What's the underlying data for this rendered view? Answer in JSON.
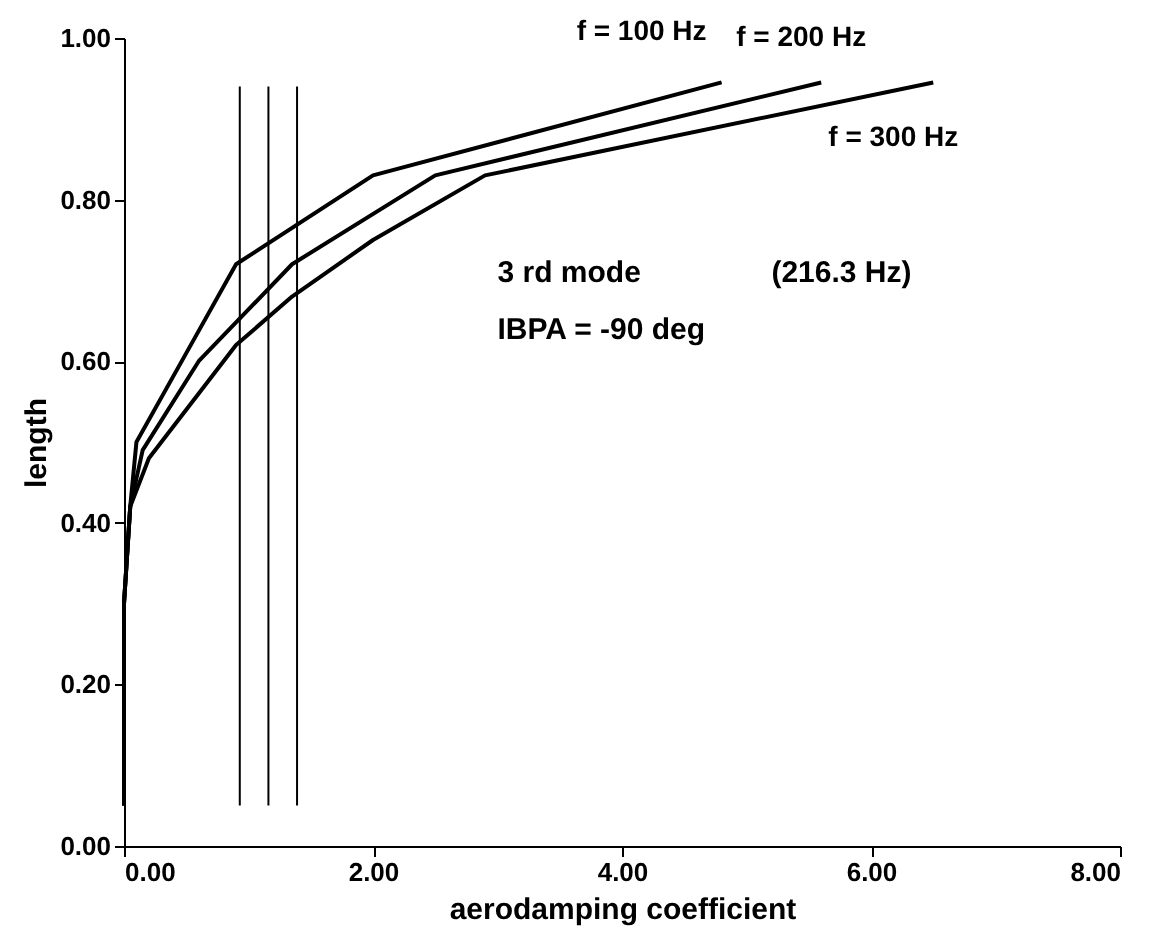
{
  "chart_data": {
    "type": "line",
    "xlabel": "aerodamping coefficient",
    "ylabel": "length",
    "xlim": [
      0,
      8
    ],
    "ylim": [
      0,
      1
    ],
    "xticks": [
      {
        "value": 0,
        "label": "0.00"
      },
      {
        "value": 2,
        "label": "2.00"
      },
      {
        "value": 4,
        "label": "4.00"
      },
      {
        "value": 6,
        "label": "6.00"
      },
      {
        "value": 8,
        "label": "8.00"
      }
    ],
    "yticks": [
      {
        "value": 0,
        "label": "0.00"
      },
      {
        "value": 0.2,
        "label": "0.20"
      },
      {
        "value": 0.4,
        "label": "0.40"
      },
      {
        "value": 0.6,
        "label": "0.60"
      },
      {
        "value": 0.8,
        "label": "0.80"
      },
      {
        "value": 1,
        "label": "1.00"
      }
    ],
    "grid": false,
    "marker": "none",
    "line_style": "solid",
    "series": [
      {
        "name": "f = 100 Hz",
        "color": "#000000",
        "x": [
          0,
          0,
          0.05,
          0.1,
          0.5,
          0.9,
          2.0,
          4.8
        ],
        "values": [
          0.05,
          0.3,
          0.42,
          0.5,
          0.61,
          0.72,
          0.83,
          0.945
        ]
      },
      {
        "name": "f = 200 Hz",
        "color": "#000000",
        "x": [
          0,
          0,
          0.05,
          0.15,
          0.6,
          1.35,
          2.5,
          5.6
        ],
        "values": [
          0.05,
          0.3,
          0.42,
          0.49,
          0.6,
          0.72,
          0.83,
          0.945
        ]
      },
      {
        "name": "f = 300 Hz",
        "color": "#000000",
        "x": [
          0,
          0,
          0.05,
          0.2,
          0.9,
          1.35,
          2.0,
          2.9,
          6.5
        ],
        "values": [
          0.05,
          0.3,
          0.42,
          0.48,
          0.62,
          0.68,
          0.75,
          0.83,
          0.945
        ]
      },
      {
        "color": "#000000",
        "x": [
          0.93,
          0.93
        ],
        "values": [
          0.05,
          0.94
        ]
      },
      {
        "color": "#000000",
        "x": [
          1.16,
          1.16
        ],
        "values": [
          0.05,
          0.94
        ]
      },
      {
        "color": "#000000",
        "x": [
          1.39,
          1.39
        ],
        "values": [
          0.05,
          0.94
        ]
      }
    ],
    "annotations": [
      "3 rd mode",
      "(216.3 Hz)",
      "IBPA = -90 deg"
    ]
  }
}
